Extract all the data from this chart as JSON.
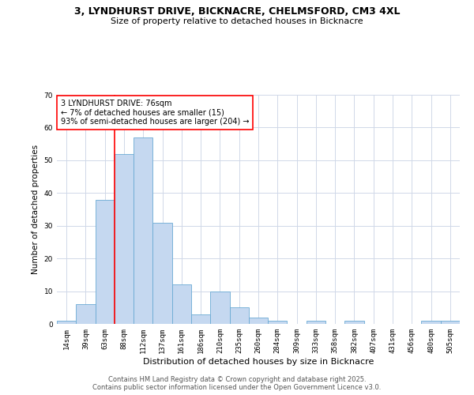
{
  "title": "3, LYNDHURST DRIVE, BICKNACRE, CHELMSFORD, CM3 4XL",
  "subtitle": "Size of property relative to detached houses in Bicknacre",
  "xlabel": "Distribution of detached houses by size in Bicknacre",
  "ylabel": "Number of detached properties",
  "categories": [
    "14sqm",
    "39sqm",
    "63sqm",
    "88sqm",
    "112sqm",
    "137sqm",
    "161sqm",
    "186sqm",
    "210sqm",
    "235sqm",
    "260sqm",
    "284sqm",
    "309sqm",
    "333sqm",
    "358sqm",
    "382sqm",
    "407sqm",
    "431sqm",
    "456sqm",
    "480sqm",
    "505sqm"
  ],
  "values": [
    1,
    6,
    38,
    52,
    57,
    31,
    12,
    3,
    10,
    5,
    2,
    1,
    0,
    1,
    0,
    1,
    0,
    0,
    0,
    1,
    1
  ],
  "bar_color": "#c5d8f0",
  "bar_edge_color": "#6aaad4",
  "background_color": "#ffffff",
  "grid_color": "#d0d8e8",
  "vline_color": "red",
  "annotation_text": "3 LYNDHURST DRIVE: 76sqm\n← 7% of detached houses are smaller (15)\n93% of semi-detached houses are larger (204) →",
  "annotation_box_color": "white",
  "annotation_box_edge": "red",
  "ylim": [
    0,
    70
  ],
  "yticks": [
    0,
    10,
    20,
    30,
    40,
    50,
    60,
    70
  ],
  "footer_line1": "Contains HM Land Registry data © Crown copyright and database right 2025.",
  "footer_line2": "Contains public sector information licensed under the Open Government Licence v3.0."
}
